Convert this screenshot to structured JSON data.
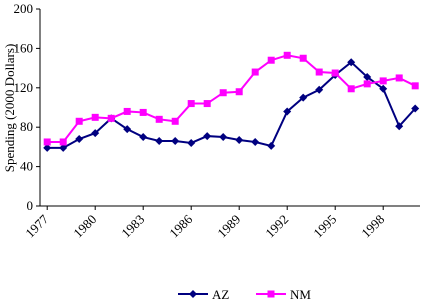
{
  "chart_data": {
    "type": "line",
    "y_label": "Spending (2000 Dollars)",
    "x": [
      1977,
      1978,
      1979,
      1980,
      1981,
      1982,
      1983,
      1984,
      1985,
      1986,
      1987,
      1988,
      1989,
      1990,
      1991,
      1992,
      1993,
      1994,
      1995,
      1996,
      1997,
      1998,
      1999,
      2000
    ],
    "series": [
      {
        "name": "AZ",
        "color": "#000080",
        "marker": "diamond",
        "values": [
          59,
          59,
          68,
          74,
          89,
          78,
          70,
          66,
          66,
          64,
          71,
          70,
          67,
          65,
          61,
          96,
          110,
          118,
          133,
          146,
          131,
          119,
          81,
          99
        ]
      },
      {
        "name": "NM",
        "color": "#ff00ff",
        "marker": "square",
        "values": [
          65,
          65,
          86,
          90,
          89,
          96,
          95,
          88,
          86,
          104,
          104,
          115,
          116,
          136,
          148,
          153,
          150,
          136,
          135,
          119,
          124,
          127,
          130,
          122
        ]
      }
    ],
    "xlim": [
      1976.55,
      2000.3
    ],
    "xticks": [
      1977,
      1980,
      1983,
      1986,
      1989,
      1992,
      1995,
      1998
    ],
    "ylim": [
      0,
      200
    ],
    "yticks": [
      0,
      40,
      80,
      120,
      160,
      200
    ],
    "legend": "bottom",
    "grid": false
  }
}
